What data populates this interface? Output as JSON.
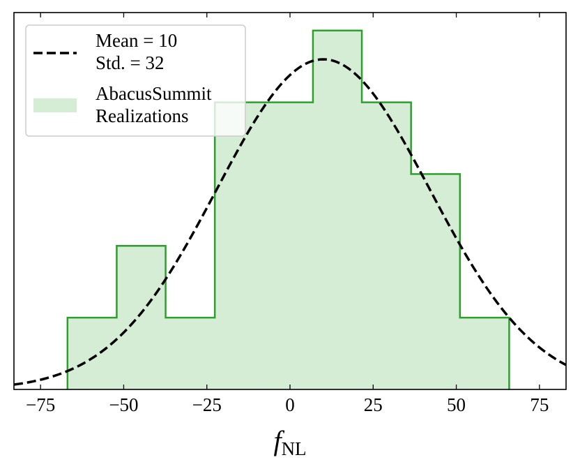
{
  "chart_data": {
    "type": "histogram",
    "bins": [
      -66.9,
      -52.1,
      -37.4,
      -22.6,
      -7.9,
      6.9,
      21.6,
      36.4,
      51.1,
      65.9
    ],
    "values": [
      1,
      2,
      1,
      4,
      4,
      5,
      4,
      3,
      1
    ],
    "color": "#2ca02c",
    "series_name": [
      "AbacusSummit",
      "Realizations"
    ],
    "curve": {
      "mean": 10,
      "std": 32,
      "color": "#000000",
      "labels": [
        "Mean = 10",
        "Std. = 32"
      ]
    },
    "xlabel": {
      "main": "f",
      "sub": "NL"
    },
    "xlim": [
      -83,
      83
    ],
    "ylim": [
      0,
      5.25
    ],
    "xticks": [
      {
        "value": -75,
        "label": "−75"
      },
      {
        "value": -50,
        "label": "−50"
      },
      {
        "value": -25,
        "label": "−25"
      },
      0,
      25,
      50,
      75
    ],
    "legend": "upper left"
  }
}
